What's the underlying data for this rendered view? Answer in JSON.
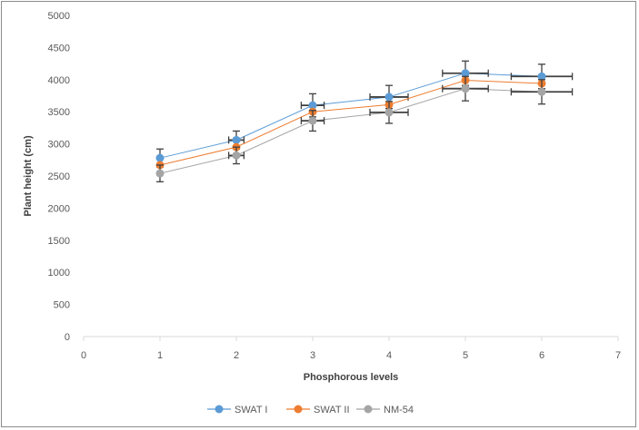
{
  "chart_data": {
    "type": "line",
    "title": "",
    "xlabel": "Phosphorous levels",
    "ylabel": "Plant height (cm)",
    "xlim": [
      0,
      7
    ],
    "ylim": [
      0,
      5000
    ],
    "x_ticks": [
      "0",
      "1",
      "2",
      "3",
      "4",
      "5",
      "6",
      "7"
    ],
    "y_ticks": [
      "0",
      "500",
      "1000",
      "1500",
      "2000",
      "2500",
      "3000",
      "3500",
      "4000",
      "4500",
      "5000"
    ],
    "grid": false,
    "legend_position": "bottom",
    "series": [
      {
        "name": "SWAT I",
        "color": "#5b9bd5",
        "x": [
          1,
          2,
          3,
          4,
          5,
          6
        ],
        "y": [
          2780,
          3060,
          3600,
          3730,
          4100,
          4050
        ],
        "y_err": [
          140,
          140,
          180,
          180,
          190,
          190
        ],
        "x_err": [
          0.0,
          0.1,
          0.15,
          0.25,
          0.3,
          0.4
        ]
      },
      {
        "name": "SWAT II",
        "color": "#ed7d31",
        "x": [
          1,
          2,
          3,
          4,
          5,
          6
        ],
        "y": [
          2670,
          2950,
          3500,
          3610,
          3990,
          3940
        ]
      },
      {
        "name": "NM-54",
        "color": "#a5a5a5",
        "x": [
          1,
          2,
          3,
          4,
          5,
          6
        ],
        "y": [
          2540,
          2820,
          3360,
          3490,
          3860,
          3810
        ],
        "y_err": [
          130,
          130,
          160,
          170,
          190,
          190
        ],
        "x_err": [
          0.0,
          0.1,
          0.15,
          0.25,
          0.3,
          0.4
        ]
      }
    ]
  }
}
